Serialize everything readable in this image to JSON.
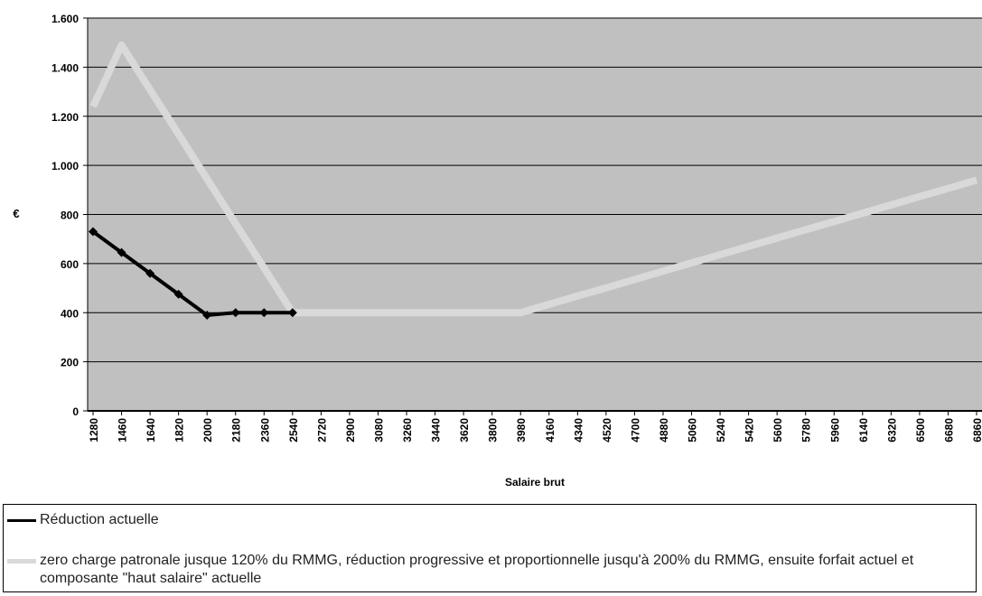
{
  "chart_data": {
    "type": "line",
    "y_label": "€",
    "x_label": "Salaire brut",
    "categories": [
      "1280",
      "1460",
      "1640",
      "1820",
      "2000",
      "2180",
      "2360",
      "2540",
      "2720",
      "2900",
      "3080",
      "3260",
      "3440",
      "3620",
      "3800",
      "3980",
      "4160",
      "4340",
      "4520",
      "4700",
      "4880",
      "5060",
      "5240",
      "5420",
      "5600",
      "5780",
      "5960",
      "6140",
      "6320",
      "6500",
      "6680",
      "6860"
    ],
    "ylim": [
      0,
      1600
    ],
    "yticks": [
      0,
      200,
      400,
      600,
      800,
      {
        "value": 1000,
        "label": "1.000"
      },
      {
        "value": 1200,
        "label": "1.200"
      },
      {
        "value": 1400,
        "label": "1.400"
      },
      {
        "value": 1600,
        "label": "1.600"
      }
    ],
    "grid": true,
    "series": [
      {
        "name": "Réduction actuelle",
        "color": "#000000",
        "values": [
          730,
          645,
          560,
          475,
          390,
          400,
          400,
          400,
          null,
          null,
          null,
          null,
          null,
          null,
          null,
          null,
          null,
          null,
          null,
          null,
          null,
          null,
          null,
          null,
          null,
          null,
          null,
          null,
          null,
          null,
          null,
          null
        ]
      },
      {
        "name": "zero charge patronale jusque 120% du RMMG, réduction progressive et proportionnelle jusqu'à 200% du RMMG, ensuite forfait actuel et composante \"haut salaire\" actuelle",
        "color": "#d9d9d9",
        "values": [
          1240,
          1490,
          1308,
          1127,
          945,
          763,
          582,
          400,
          400,
          400,
          400,
          400,
          400,
          400,
          400,
          400,
          434,
          468,
          501,
          535,
          569,
          603,
          636,
          670,
          704,
          738,
          771,
          805,
          839,
          873,
          906,
          940
        ]
      }
    ]
  }
}
